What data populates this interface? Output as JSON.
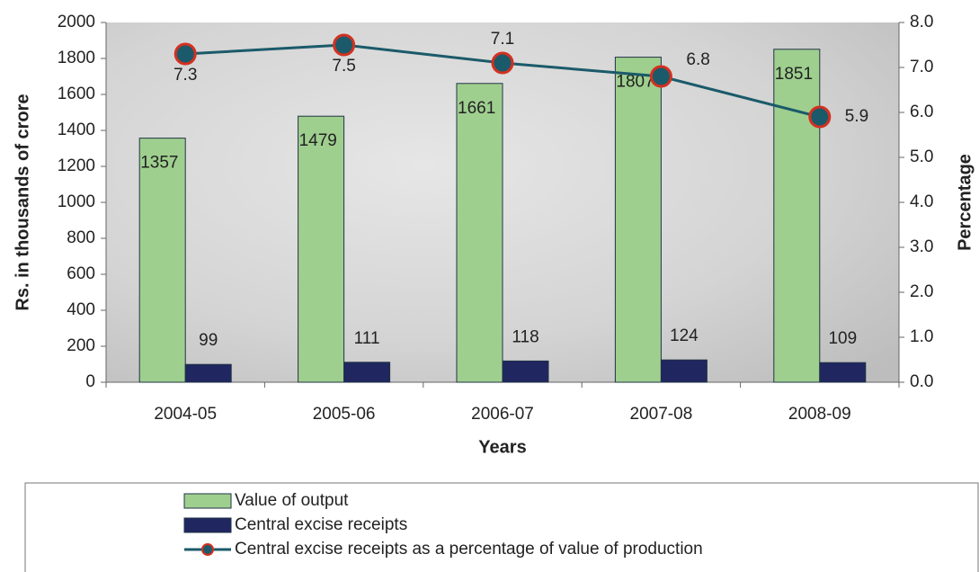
{
  "chart_data": {
    "type": "bar",
    "xlabel": "Years",
    "ylabel": "Rs. in thousands of crore",
    "y2label": "Percentage",
    "categories": [
      "2004-05",
      "2005-06",
      "2006-07",
      "2007-08",
      "2008-09"
    ],
    "series": [
      {
        "name": "Value of output",
        "type": "bar",
        "color": "#9fcf8f",
        "values": [
          1357,
          1479,
          1661,
          1807,
          1851
        ]
      },
      {
        "name": "Central excise receipts",
        "type": "bar",
        "color": "#1f2660",
        "values": [
          99,
          111,
          118,
          124,
          109
        ]
      },
      {
        "name": "Central excise receipts as a percentage of value of production",
        "type": "line",
        "axis": "y2",
        "color": "#1b5a6a",
        "marker_edge": "#d43020",
        "values": [
          7.3,
          7.5,
          7.1,
          6.8,
          5.9
        ]
      }
    ],
    "ylim": [
      0,
      2000
    ],
    "yticks": [
      0,
      200,
      400,
      600,
      800,
      1000,
      1200,
      1400,
      1600,
      1800,
      2000
    ],
    "y2lim": [
      0,
      8
    ],
    "y2ticks": [
      {
        "value": 0,
        "label": "0.0"
      },
      {
        "value": 1,
        "label": "1.0"
      },
      {
        "value": 2,
        "label": "2.0"
      },
      {
        "value": 3,
        "label": "3.0"
      },
      {
        "value": 4,
        "label": "4.0"
      },
      {
        "value": 5,
        "label": "5.0"
      },
      {
        "value": 6,
        "label": "6.0"
      },
      {
        "value": 7,
        "label": "7.0"
      },
      {
        "value": 8,
        "label": "8.0"
      }
    ],
    "legend": "bottom"
  }
}
